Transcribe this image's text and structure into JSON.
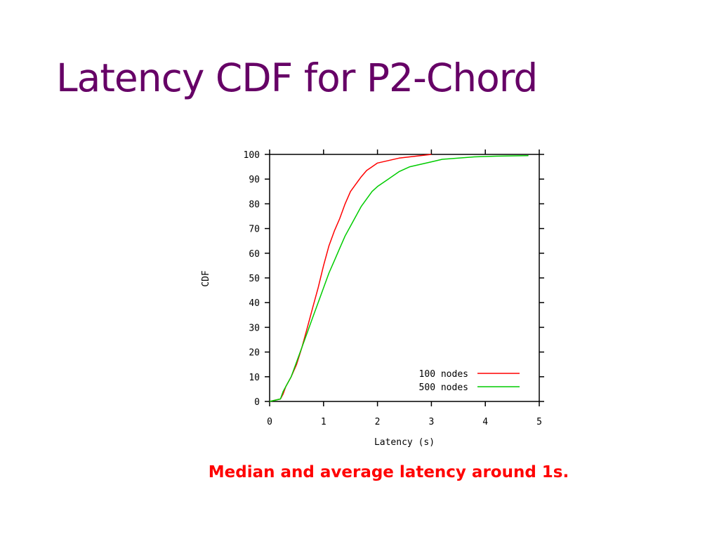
{
  "slide": {
    "title": "Latency CDF for P2-Chord",
    "caption": "Median and average latency around 1s."
  },
  "chart_data": {
    "type": "line",
    "title": "",
    "xlabel": "Latency (s)",
    "ylabel": "CDF",
    "xlim": [
      0,
      5
    ],
    "ylim": [
      0,
      100
    ],
    "xticks": [
      0,
      1,
      2,
      3,
      4,
      5
    ],
    "yticks": [
      0,
      10,
      20,
      30,
      40,
      50,
      60,
      70,
      80,
      90,
      100
    ],
    "grid": false,
    "legend": "bottom-right",
    "series": [
      {
        "name": "100 nodes",
        "color": "#ff0000",
        "x": [
          0,
          0.2,
          0.25,
          0.3,
          0.4,
          0.5,
          0.6,
          0.7,
          0.8,
          0.9,
          1.0,
          1.1,
          1.2,
          1.3,
          1.4,
          1.5,
          1.6,
          1.7,
          1.8,
          1.9,
          2.0,
          2.2,
          2.4,
          2.6,
          2.8,
          3.0
        ],
        "y": [
          0,
          1,
          3,
          6,
          10,
          15,
          22,
          30,
          38,
          46,
          55,
          63,
          69,
          74,
          80,
          85,
          88,
          91,
          93.5,
          95,
          96.5,
          97.5,
          98.5,
          99,
          99.5,
          100
        ]
      },
      {
        "name": "500 nodes",
        "color": "#00cc00",
        "x": [
          0,
          0.2,
          0.25,
          0.3,
          0.4,
          0.5,
          0.6,
          0.7,
          0.8,
          0.9,
          1.0,
          1.1,
          1.2,
          1.3,
          1.4,
          1.5,
          1.6,
          1.7,
          1.8,
          1.9,
          2.0,
          2.2,
          2.4,
          2.6,
          2.8,
          3.0,
          3.2,
          3.5,
          3.8,
          4.2,
          4.8
        ],
        "y": [
          0,
          1,
          4,
          6,
          10,
          16,
          22,
          28,
          34,
          40,
          46,
          52,
          57,
          62,
          67,
          71,
          75,
          79,
          82,
          85,
          87,
          90,
          93,
          95,
          96,
          97,
          98,
          98.5,
          99,
          99.3,
          99.5
        ]
      }
    ]
  }
}
